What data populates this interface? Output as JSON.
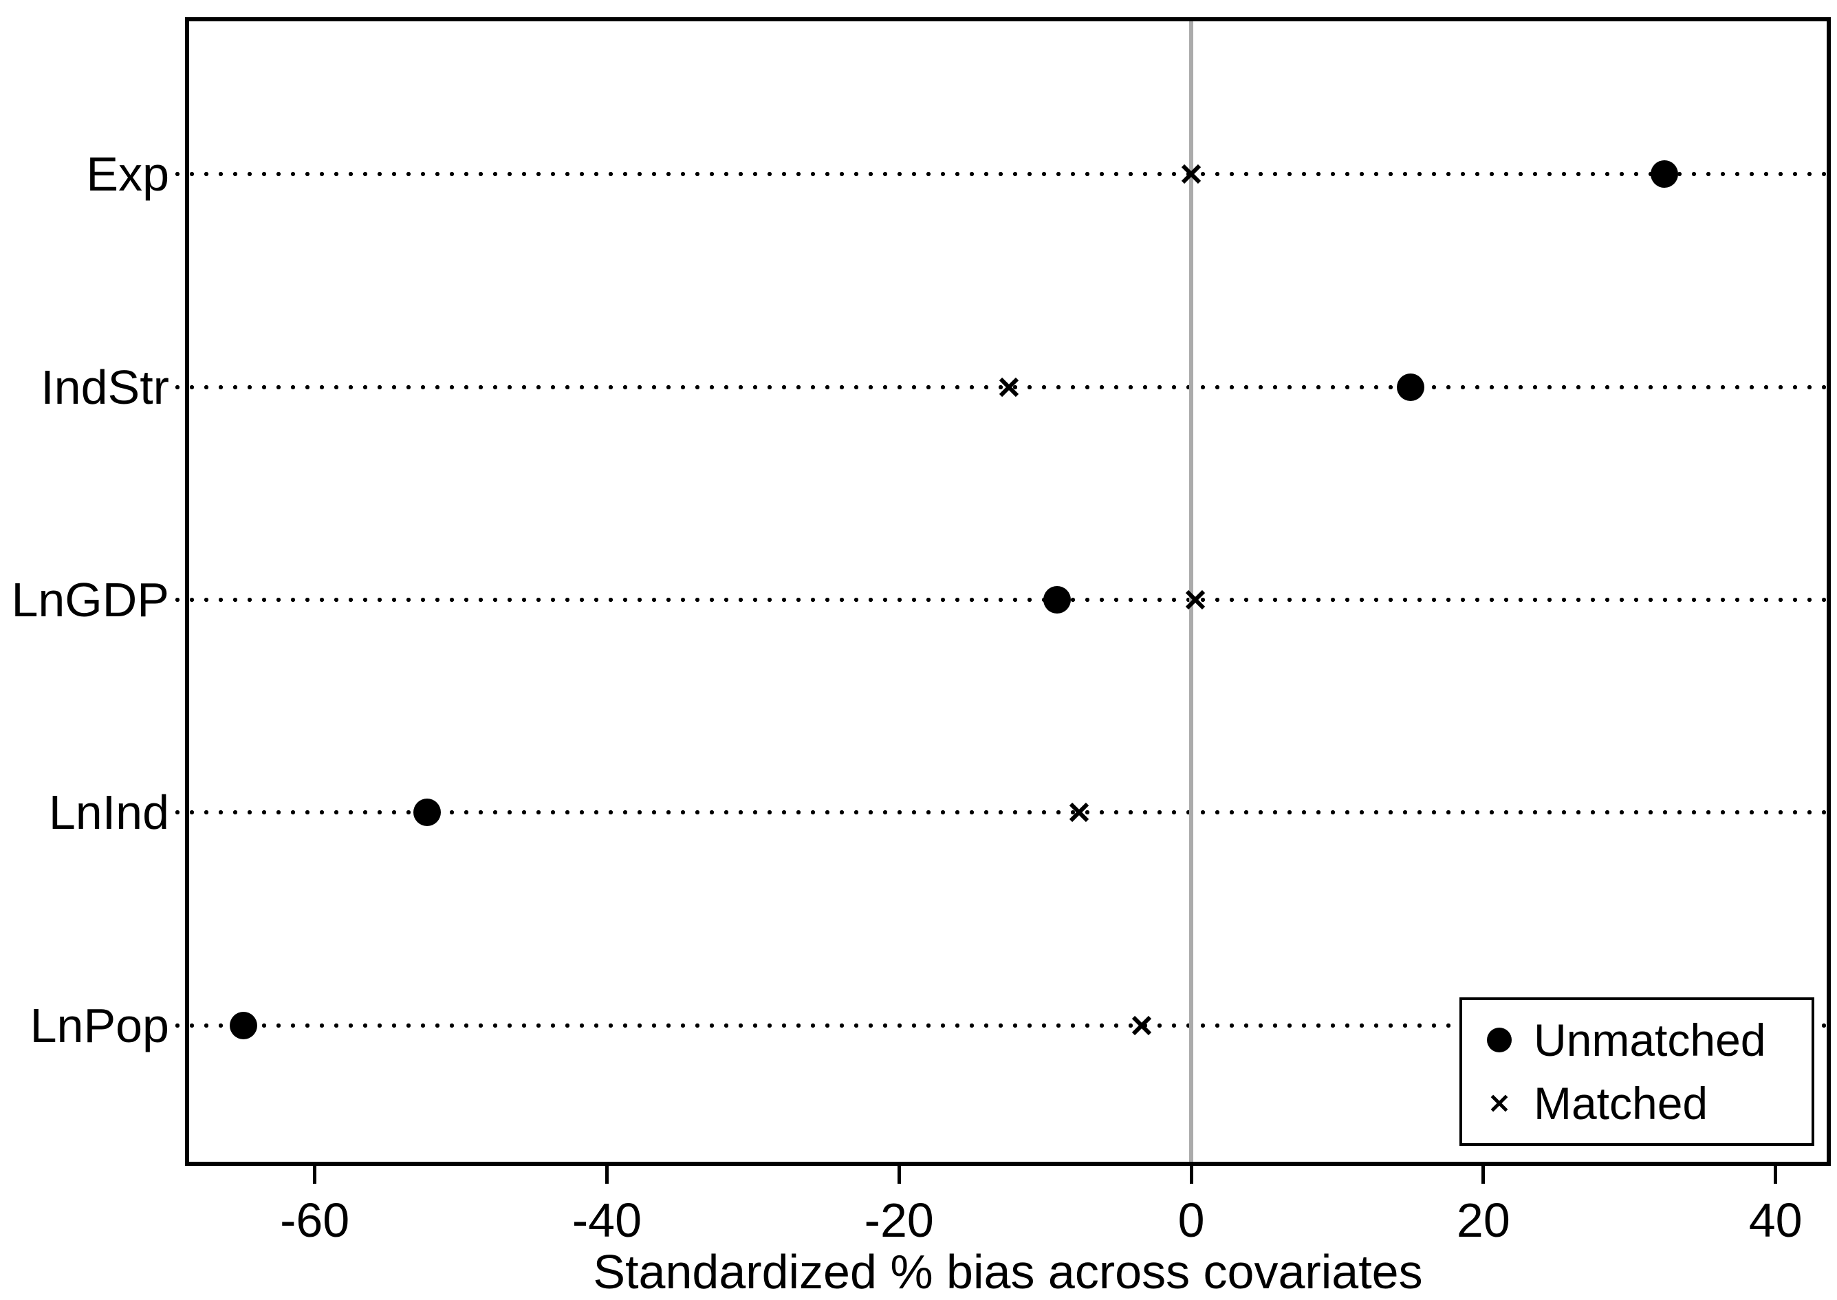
{
  "chart_data": {
    "type": "scatter",
    "title": "",
    "xlabel": "Standardized % bias across covariates",
    "ylabel": "",
    "categories": [
      "Exp",
      "IndStr",
      "LnGDP",
      "LnInd",
      "LnPop"
    ],
    "series": [
      {
        "name": "Unmatched",
        "marker": "circle",
        "values": [
          32.4,
          15.0,
          -9.2,
          -52.3,
          -64.9
        ]
      },
      {
        "name": "Matched",
        "marker": "x",
        "values": [
          0.0,
          -12.5,
          0.3,
          -7.7,
          -3.4
        ]
      }
    ],
    "x_ticks": [
      -60,
      -40,
      -20,
      0,
      20,
      40
    ],
    "xlim": [
      -68.6,
      43.5
    ],
    "zero_reference_line": 0,
    "grid": "horizontal dotted",
    "legend_position": "bottom-right inside plot"
  },
  "legend": {
    "items": [
      {
        "label": "Unmatched",
        "marker": "circle"
      },
      {
        "label": "Matched",
        "marker": "x"
      }
    ]
  },
  "colors": {
    "marker": "#000000",
    "zero_line": "#ababab",
    "border": "#000000",
    "background": "#ffffff",
    "text": "#000000"
  }
}
